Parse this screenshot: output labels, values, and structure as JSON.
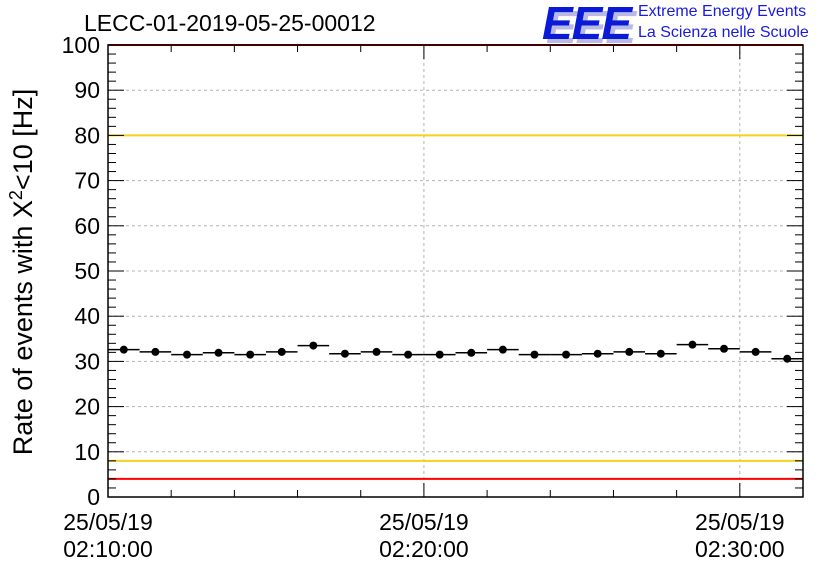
{
  "title": "LECC-01-2019-05-25-00012",
  "logo": {
    "mark": "EEE",
    "line1": "Extreme Energy Events",
    "line2": "La Scienza nelle Scuole"
  },
  "colors": {
    "red_line": "#ff0000",
    "yellow_line": "#f2d21b",
    "points": "#000000",
    "logo": "#0a1bd8"
  },
  "chart_data": {
    "type": "scatter",
    "ylabel_main": "Rate of events with X",
    "ylabel_sup": "2",
    "ylabel_tail": "<10 [Hz]",
    "ylim": [
      0,
      100
    ],
    "yticks": [
      0,
      10,
      20,
      30,
      40,
      50,
      60,
      70,
      80,
      90,
      100
    ],
    "grid": true,
    "x_time_range_seconds": [
      0,
      1320
    ],
    "xtick_labels": [
      {
        "t": 0,
        "date": "25/05/19",
        "time": "02:10:00"
      },
      {
        "t": 600,
        "date": "25/05/19",
        "time": "02:20:00"
      },
      {
        "t": 1200,
        "date": "25/05/19",
        "time": "02:30:00"
      }
    ],
    "reference_lines": [
      {
        "y": 100,
        "color": "red"
      },
      {
        "y": 80,
        "color": "yellow"
      },
      {
        "y": 8,
        "color": "yellow"
      },
      {
        "y": 4,
        "color": "red"
      }
    ],
    "bin_width_seconds": 60,
    "x": [
      30,
      90,
      150,
      210,
      270,
      330,
      390,
      450,
      510,
      570,
      630,
      690,
      750,
      810,
      870,
      930,
      990,
      1050,
      1110,
      1170,
      1230,
      1290
    ],
    "y": [
      32.6,
      32.1,
      31.5,
      31.9,
      31.5,
      32.1,
      33.5,
      31.7,
      32.1,
      31.5,
      31.5,
      31.9,
      32.6,
      31.5,
      31.5,
      31.7,
      32.1,
      31.7,
      33.7,
      32.8,
      32.1,
      30.6
    ]
  }
}
